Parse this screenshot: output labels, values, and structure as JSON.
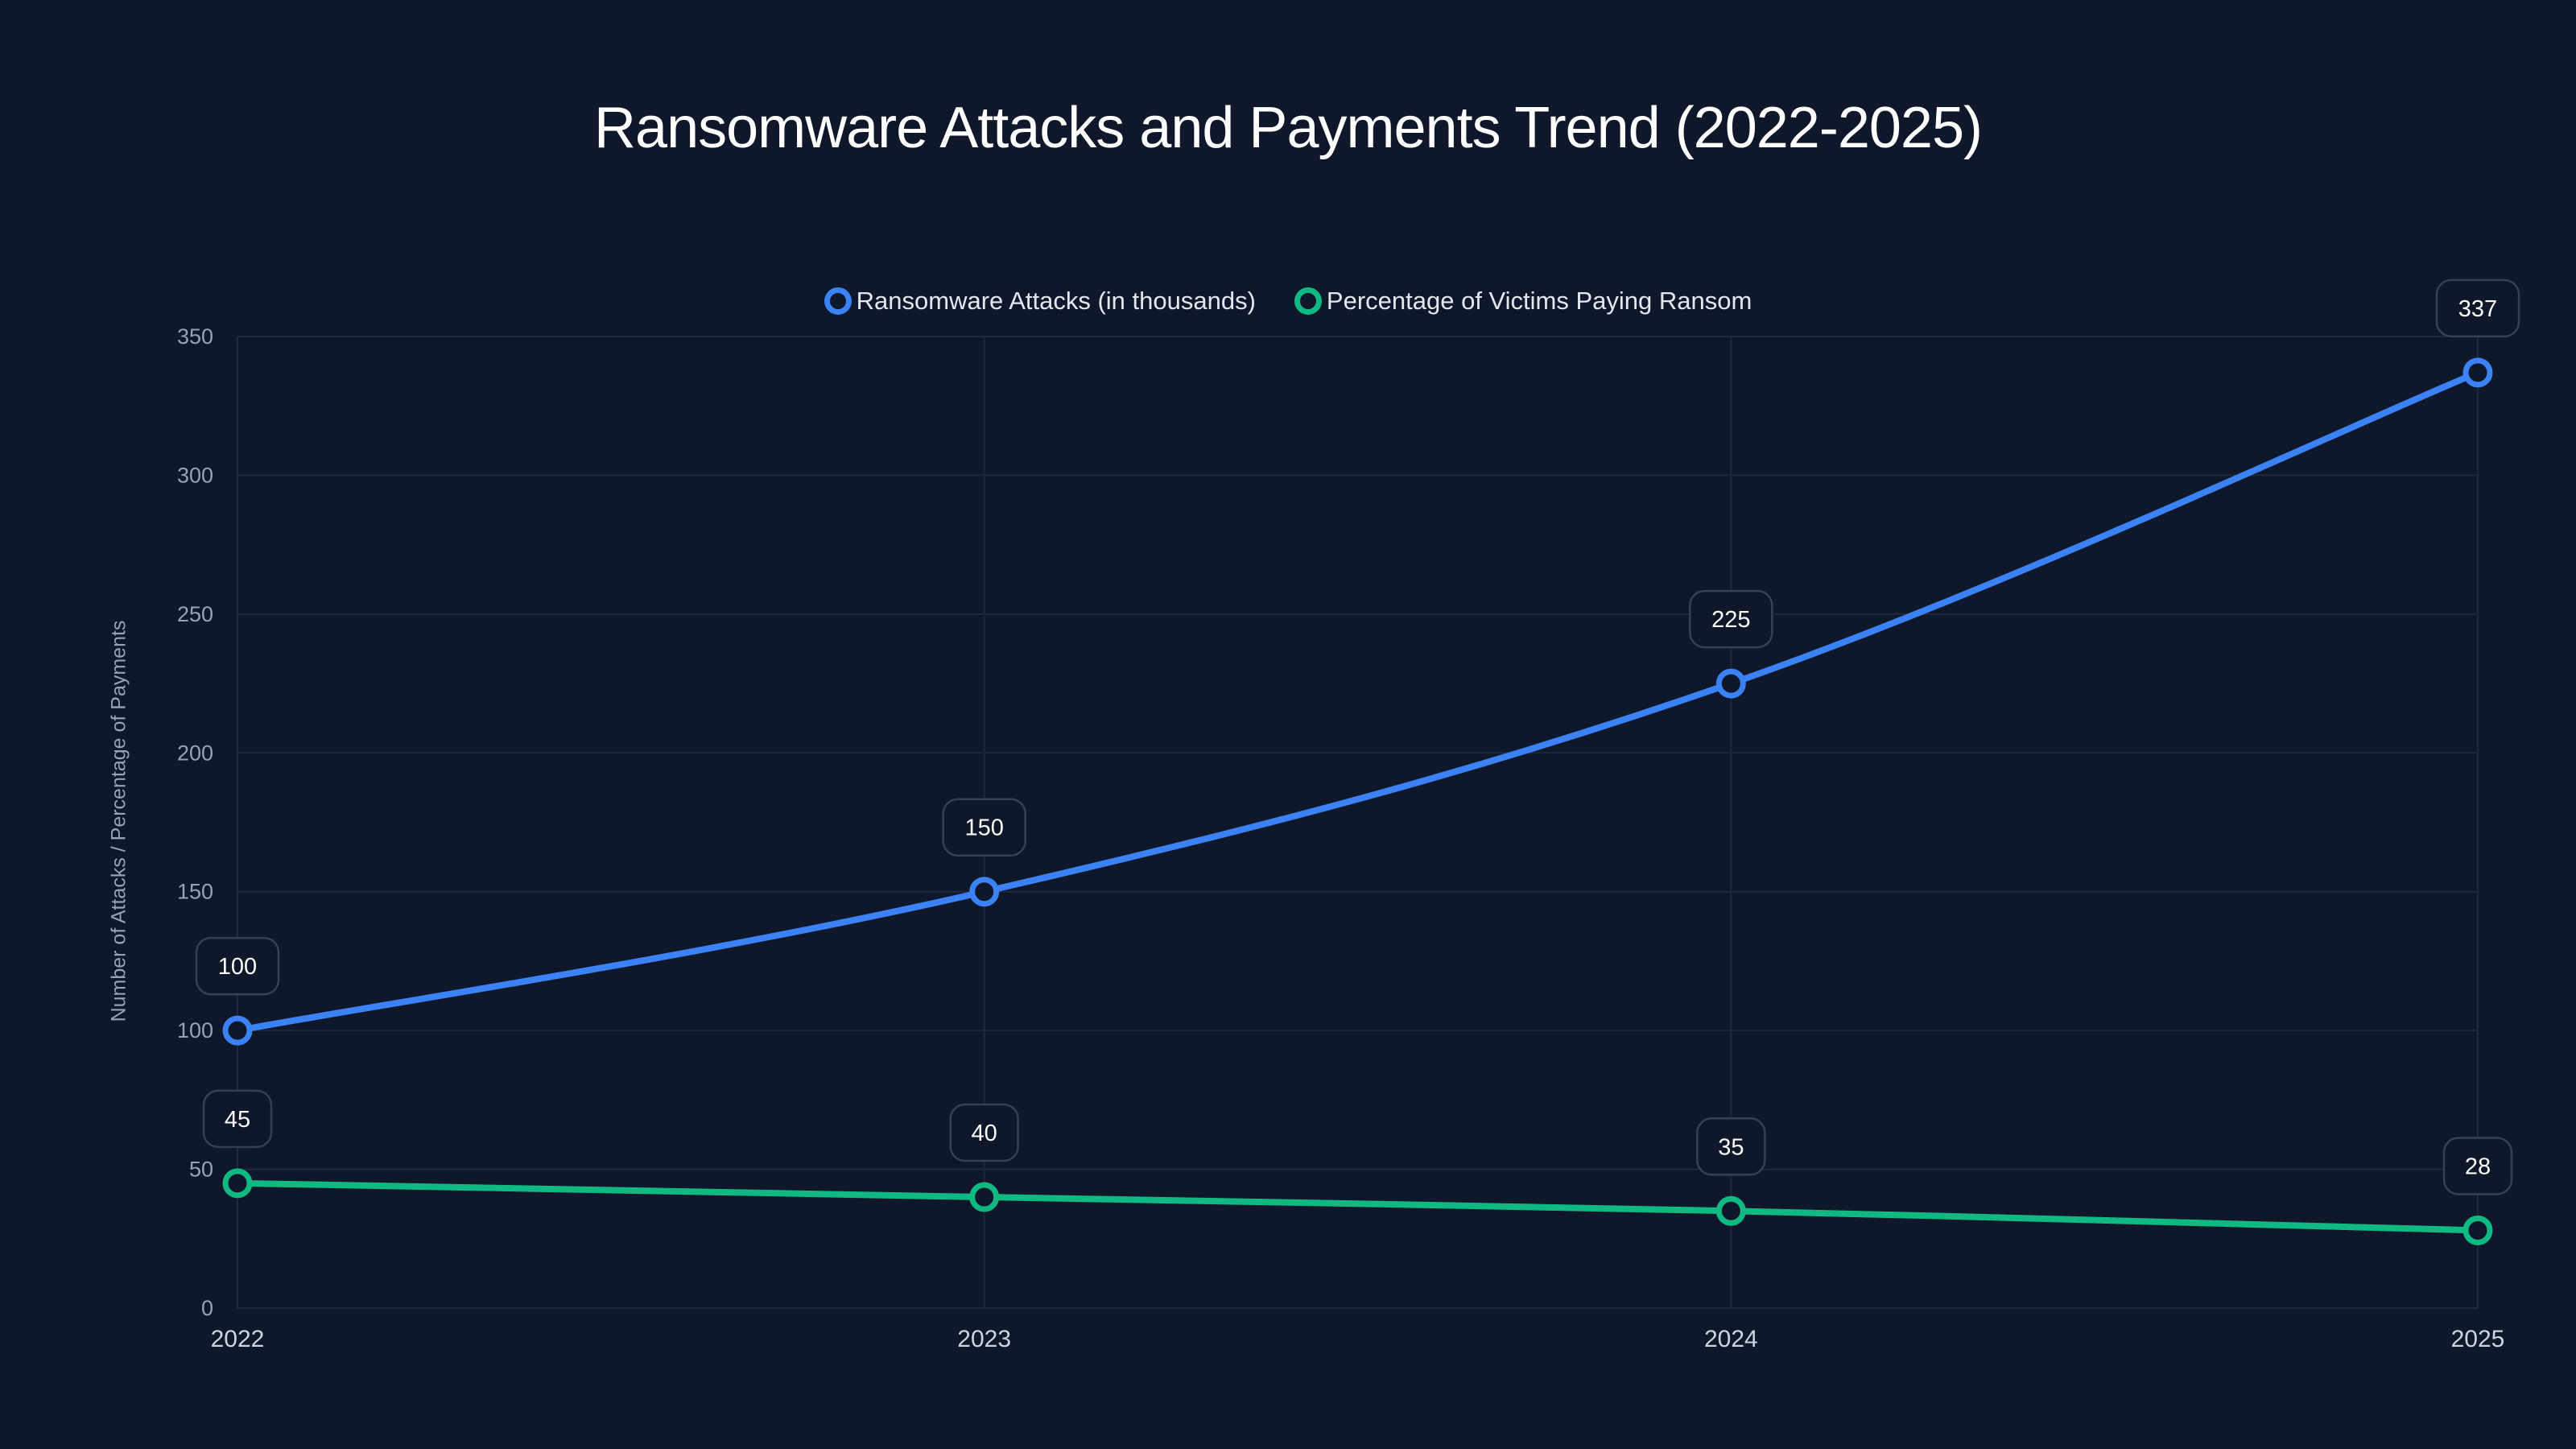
{
  "chart_data": {
    "type": "line",
    "title": "Ransomware Attacks and Payments Trend (2022-2025)",
    "xlabel": "",
    "ylabel": "Number of Attacks / Percentage of Payments",
    "x": [
      "2022",
      "2023",
      "2024",
      "2025"
    ],
    "ylim": [
      0,
      350
    ],
    "yticks": [
      0,
      50,
      100,
      150,
      200,
      250,
      300,
      350
    ],
    "grid": true,
    "legend_position": "top-center",
    "series": [
      {
        "name": "Ransomware Attacks (in thousands)",
        "color": "#3b82f6",
        "values": [
          100,
          150,
          225,
          337
        ],
        "smooth": true
      },
      {
        "name": "Percentage of Victims Paying Ransom",
        "color": "#10b981",
        "values": [
          45,
          40,
          35,
          28
        ],
        "smooth": true
      }
    ],
    "data_labels": true
  },
  "colors": {
    "background": "#0f172a",
    "grid": "#1e293b",
    "label_border": "#334155",
    "tick_text": "#94a3b8"
  }
}
